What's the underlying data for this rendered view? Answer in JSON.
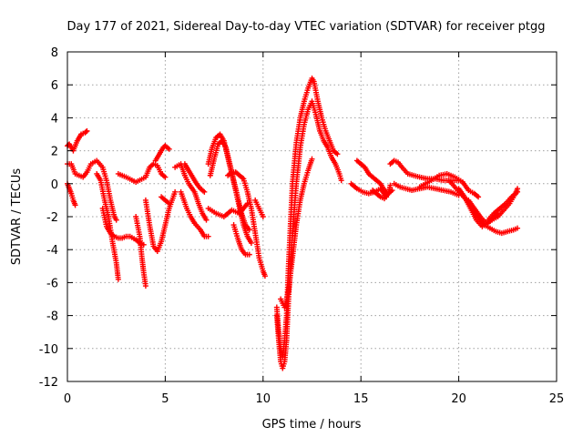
{
  "chart_data": {
    "type": "scatter",
    "title": "Day 177 of 2021, Sidereal Day-to-day VTEC variation (SDTVAR) for receiver ptgg",
    "xlabel": "GPS time / hours",
    "ylabel": "SDTVAR / TECUs",
    "xlim": [
      0,
      25
    ],
    "ylim": [
      -12,
      8
    ],
    "xticks": [
      0,
      5,
      10,
      15,
      20,
      25
    ],
    "yticks": [
      -12,
      -10,
      -8,
      -6,
      -4,
      -2,
      0,
      2,
      4,
      6,
      8
    ],
    "xtick_labels": [
      "0",
      "5",
      "10",
      "15",
      "20",
      "25"
    ],
    "ytick_labels": [
      "-12",
      "-10",
      "-8",
      "-6",
      "-4",
      "-2",
      "0",
      "2",
      "4",
      "6",
      "8"
    ],
    "grid": true,
    "marker": "plus",
    "color": "#ff0000",
    "series": [
      {
        "name": "s01",
        "x": [
          0.0,
          0.1,
          0.3,
          0.5,
          0.7,
          0.9,
          1.0
        ],
        "y": [
          2.3,
          2.4,
          2.0,
          2.6,
          3.0,
          3.1,
          3.2
        ]
      },
      {
        "name": "s02",
        "x": [
          0.0,
          0.2,
          0.4,
          0.6,
          0.8,
          1.0,
          1.2,
          1.5,
          1.8,
          2.0,
          2.2,
          2.4,
          2.5
        ],
        "y": [
          1.2,
          1.2,
          0.6,
          0.5,
          0.4,
          0.7,
          1.2,
          1.4,
          1.0,
          0.2,
          -1.0,
          -2.0,
          -2.2
        ]
      },
      {
        "name": "s03",
        "x": [
          0.0,
          0.1,
          0.2,
          0.3,
          0.4
        ],
        "y": [
          0.0,
          -0.3,
          -0.6,
          -1.0,
          -1.3
        ]
      },
      {
        "name": "s04",
        "x": [
          1.5,
          1.7,
          1.9,
          2.1,
          2.3,
          2.5,
          2.6
        ],
        "y": [
          0.6,
          0.2,
          -1.0,
          -2.0,
          -3.5,
          -4.8,
          -5.8
        ]
      },
      {
        "name": "s05",
        "x": [
          1.8,
          2.0,
          2.2,
          2.4,
          2.6,
          2.8,
          3.0,
          3.2,
          3.5,
          3.7,
          3.9
        ],
        "y": [
          -1.5,
          -2.6,
          -3.0,
          -3.2,
          -3.3,
          -3.3,
          -3.2,
          -3.2,
          -3.4,
          -3.6,
          -3.7
        ]
      },
      {
        "name": "s06",
        "x": [
          3.5,
          3.7,
          3.8,
          3.9,
          4.0
        ],
        "y": [
          -2.0,
          -3.2,
          -4.4,
          -5.4,
          -6.2
        ]
      },
      {
        "name": "s07",
        "x": [
          2.6,
          3.0,
          3.5,
          4.0,
          4.2,
          4.4,
          4.6,
          4.8,
          5.0
        ],
        "y": [
          0.6,
          0.4,
          0.1,
          0.4,
          1.0,
          1.2,
          1.1,
          0.6,
          0.4
        ]
      },
      {
        "name": "s08",
        "x": [
          4.5,
          4.7,
          4.9,
          5.0,
          5.2
        ],
        "y": [
          1.4,
          1.8,
          2.2,
          2.3,
          2.1
        ]
      },
      {
        "name": "s09",
        "x": [
          4.0,
          4.2,
          4.4,
          4.6,
          4.8,
          5.0,
          5.2,
          5.5
        ],
        "y": [
          -1.0,
          -2.5,
          -3.8,
          -4.1,
          -3.5,
          -2.5,
          -1.5,
          -0.5
        ]
      },
      {
        "name": "s10",
        "x": [
          4.8,
          5.0,
          5.2
        ],
        "y": [
          -0.8,
          -1.0,
          -1.2
        ]
      },
      {
        "name": "s11",
        "x": [
          5.5,
          5.8,
          6.0,
          6.2,
          6.5,
          6.7,
          6.9,
          7.1
        ],
        "y": [
          1.0,
          1.2,
          0.5,
          0.0,
          -0.5,
          -1.2,
          -1.8,
          -2.2
        ]
      },
      {
        "name": "s12",
        "x": [
          5.8,
          6.1,
          6.3,
          6.5,
          6.8,
          7.0,
          7.2
        ],
        "y": [
          -0.5,
          -1.5,
          -2.0,
          -2.4,
          -2.8,
          -3.2,
          -3.2
        ]
      },
      {
        "name": "s13",
        "x": [
          6.0,
          6.2,
          6.4,
          6.6,
          6.8,
          7.0
        ],
        "y": [
          1.2,
          0.8,
          0.4,
          0.0,
          -0.3,
          -0.5
        ]
      },
      {
        "name": "s14",
        "x": [
          7.2,
          7.4,
          7.6,
          7.8,
          8.0,
          8.2,
          8.4,
          8.6,
          8.8,
          9.0,
          9.2,
          9.4
        ],
        "y": [
          1.2,
          2.2,
          2.8,
          3.0,
          2.6,
          1.6,
          0.6,
          -0.4,
          -1.5,
          -2.5,
          -3.2,
          -3.6
        ]
      },
      {
        "name": "s15",
        "x": [
          7.3,
          7.5,
          7.7,
          7.9,
          8.1,
          8.3,
          8.5,
          8.7,
          8.9,
          9.1,
          9.3
        ],
        "y": [
          0.5,
          1.5,
          2.4,
          2.6,
          2.2,
          1.2,
          0.2,
          -0.8,
          -1.8,
          -2.5,
          -2.8
        ]
      },
      {
        "name": "s16",
        "x": [
          7.2,
          7.6,
          8.0,
          8.4,
          8.8,
          9.2
        ],
        "y": [
          -1.5,
          -1.8,
          -2.0,
          -1.6,
          -1.8,
          -1.2
        ]
      },
      {
        "name": "s17",
        "x": [
          8.2,
          8.4,
          8.6,
          8.8,
          9.0,
          9.2,
          9.4,
          9.6,
          9.8,
          10.0,
          10.1
        ],
        "y": [
          0.5,
          0.7,
          0.7,
          0.5,
          0.3,
          -0.5,
          -1.5,
          -3.0,
          -4.5,
          -5.3,
          -5.6
        ]
      },
      {
        "name": "s18",
        "x": [
          8.5,
          8.7,
          8.9,
          9.1,
          9.3
        ],
        "y": [
          -2.5,
          -3.3,
          -4.0,
          -4.3,
          -4.3
        ]
      },
      {
        "name": "s19",
        "x": [
          9.6,
          9.8,
          10.0
        ],
        "y": [
          -1.0,
          -1.5,
          -2.0
        ]
      },
      {
        "name": "s20",
        "x": [
          10.7,
          10.8,
          10.9,
          11.0,
          11.1,
          11.2,
          11.3,
          11.5,
          11.7,
          11.9,
          12.1,
          12.3,
          12.5,
          12.6,
          12.8,
          13.0,
          13.2,
          13.4,
          13.6,
          13.8
        ],
        "y": [
          -7.5,
          -9.0,
          -10.0,
          -10.5,
          -9.5,
          -8.0,
          -5.0,
          0.0,
          2.5,
          4.0,
          5.0,
          5.8,
          6.4,
          6.2,
          5.0,
          4.0,
          3.2,
          2.6,
          2.0,
          1.8
        ]
      },
      {
        "name": "s21",
        "x": [
          10.7,
          10.8,
          10.9,
          11.0,
          11.1,
          11.2,
          11.3,
          11.5,
          11.7,
          11.9,
          12.1,
          12.3,
          12.5,
          12.7,
          12.9,
          13.1,
          13.3,
          13.5,
          13.7,
          13.9,
          14.0
        ],
        "y": [
          -8.0,
          -9.5,
          -10.8,
          -11.2,
          -10.8,
          -9.5,
          -7.0,
          -3.0,
          0.0,
          2.2,
          3.6,
          4.5,
          5.0,
          4.2,
          3.2,
          2.6,
          2.2,
          1.6,
          1.2,
          0.6,
          0.2
        ]
      },
      {
        "name": "s22",
        "x": [
          10.9,
          11.1,
          11.3,
          11.5,
          11.7,
          11.9,
          12.1,
          12.3,
          12.5
        ],
        "y": [
          -7.0,
          -7.5,
          -6.5,
          -4.5,
          -2.5,
          -1.0,
          0.0,
          0.8,
          1.5
        ]
      },
      {
        "name": "s23",
        "x": [
          14.8,
          15.0,
          15.2,
          15.4,
          15.6,
          15.8,
          16.0,
          16.2,
          16.4,
          16.6
        ],
        "y": [
          1.4,
          1.2,
          1.0,
          0.6,
          0.4,
          0.2,
          0.0,
          -0.4,
          -0.6,
          -0.4
        ]
      },
      {
        "name": "s24",
        "x": [
          14.5,
          14.8,
          15.1,
          15.4,
          15.7,
          16.0,
          16.3
        ],
        "y": [
          0.0,
          -0.3,
          -0.5,
          -0.6,
          -0.5,
          -0.3,
          -0.8
        ]
      },
      {
        "name": "s25",
        "x": [
          15.6,
          15.8,
          16.0,
          16.2,
          16.4,
          16.5
        ],
        "y": [
          -0.4,
          -0.6,
          -0.8,
          -0.9,
          -0.6,
          -0.1
        ]
      },
      {
        "name": "s26",
        "x": [
          16.5,
          16.7,
          16.9,
          17.1,
          17.4,
          17.7,
          18.0,
          18.4,
          18.8,
          19.2,
          19.6,
          20.0
        ],
        "y": [
          1.2,
          1.4,
          1.3,
          1.0,
          0.6,
          0.5,
          0.4,
          0.3,
          0.3,
          0.2,
          0.2,
          0.2
        ]
      },
      {
        "name": "s27",
        "x": [
          16.7,
          17.0,
          17.3,
          17.6,
          18.0,
          18.4,
          18.8,
          19.2,
          19.6,
          20.0
        ],
        "y": [
          0.0,
          -0.2,
          -0.3,
          -0.4,
          -0.3,
          -0.2,
          -0.3,
          -0.4,
          -0.5,
          -0.7
        ]
      },
      {
        "name": "s28",
        "x": [
          18.0,
          18.3,
          18.6,
          19.0,
          19.4,
          19.8,
          20.2,
          20.5,
          20.8,
          21.0
        ],
        "y": [
          -0.2,
          0.0,
          0.2,
          0.5,
          0.6,
          0.4,
          0.1,
          -0.4,
          -0.6,
          -0.8
        ]
      },
      {
        "name": "s29",
        "x": [
          19.5,
          19.8,
          20.1,
          20.4,
          20.7,
          21.0,
          21.3,
          21.6,
          21.9,
          22.2,
          22.5,
          22.8,
          23.0
        ],
        "y": [
          0.2,
          -0.2,
          -0.6,
          -1.0,
          -1.5,
          -2.0,
          -2.5,
          -2.7,
          -2.9,
          -3.0,
          -2.9,
          -2.8,
          -2.7
        ]
      },
      {
        "name": "s30",
        "x": [
          20.0,
          20.3,
          20.6,
          20.9,
          21.2,
          21.5,
          21.8,
          22.0
        ],
        "y": [
          -0.3,
          -0.8,
          -1.5,
          -2.2,
          -2.6,
          -2.4,
          -2.0,
          -1.8
        ]
      },
      {
        "name": "s31",
        "x": [
          21.5,
          21.8,
          22.1,
          22.4,
          22.7,
          23.0
        ],
        "y": [
          -2.2,
          -1.8,
          -1.5,
          -1.2,
          -0.8,
          -0.5
        ]
      },
      {
        "name": "s32",
        "x": [
          20.5,
          20.8,
          21.1,
          21.4,
          21.7,
          22.0,
          22.3,
          22.6,
          22.9,
          23.0
        ],
        "y": [
          -1.0,
          -1.5,
          -2.0,
          -2.4,
          -2.2,
          -2.0,
          -1.6,
          -1.2,
          -0.6,
          -0.3
        ]
      }
    ]
  }
}
